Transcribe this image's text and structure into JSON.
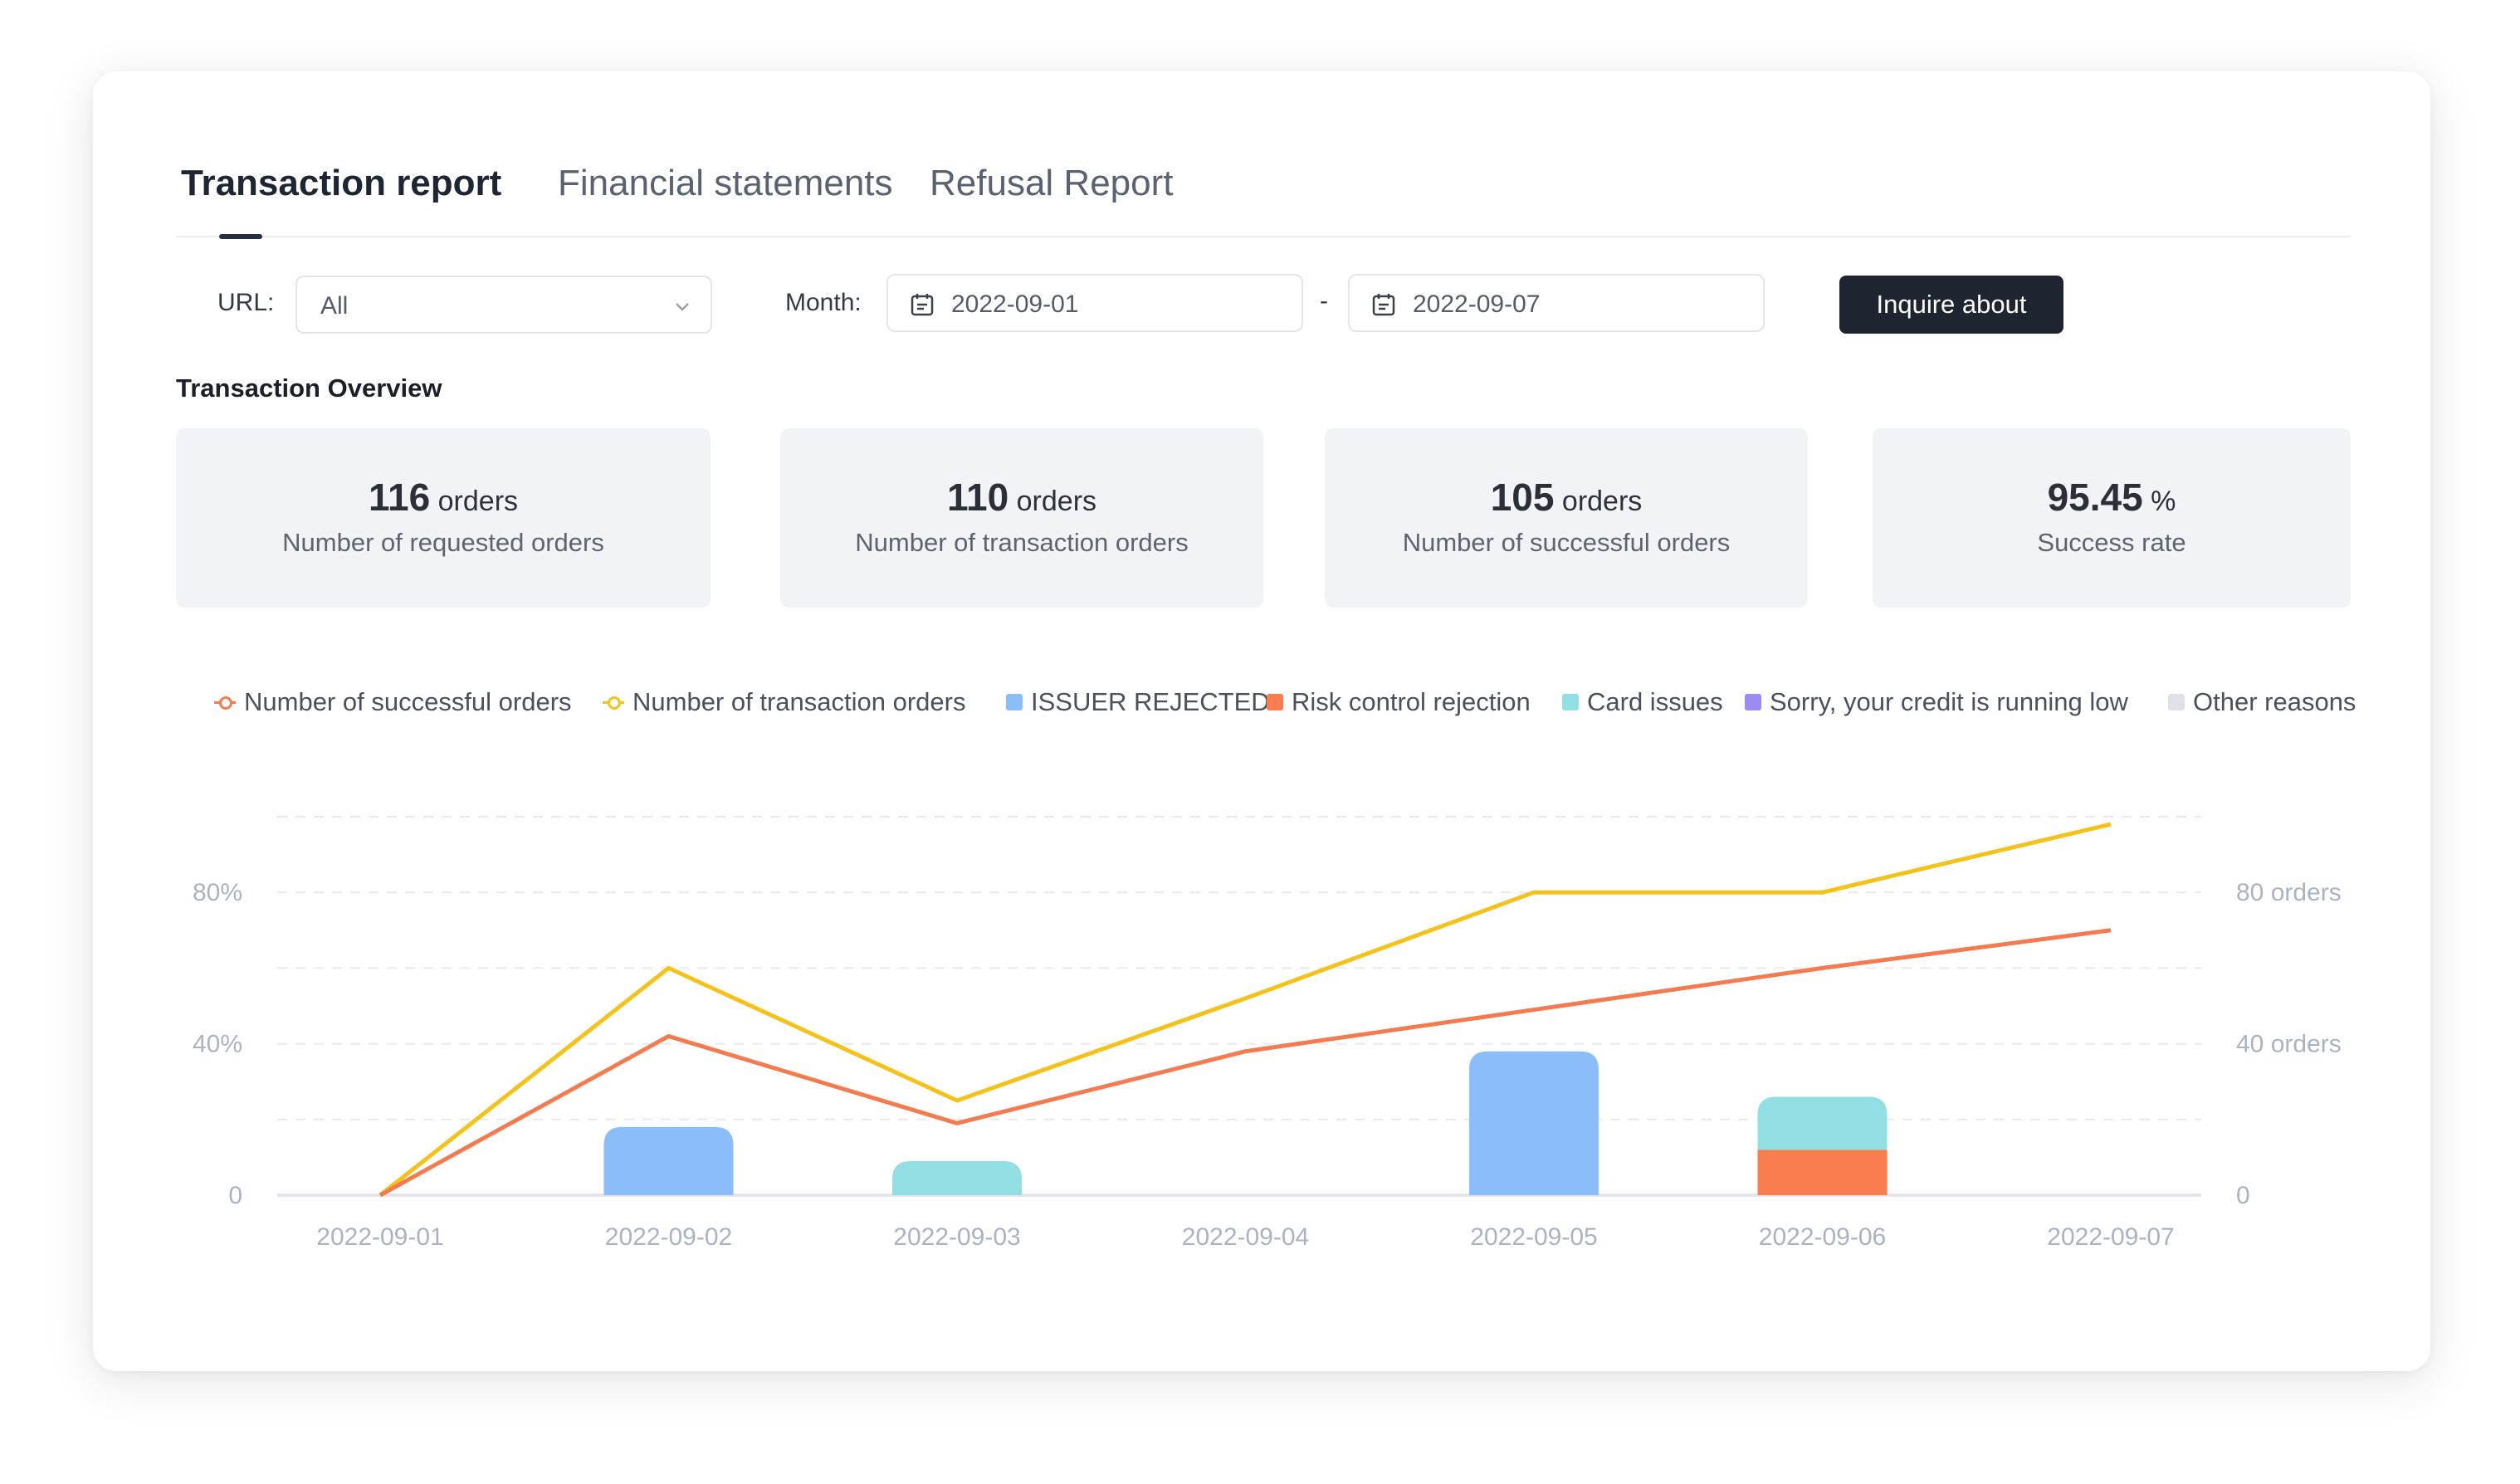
{
  "tabs": [
    {
      "label": "Transaction report",
      "active": true
    },
    {
      "label": "Financial statements",
      "active": false
    },
    {
      "label": "Refusal Report",
      "active": false
    }
  ],
  "filters": {
    "url_label": "URL:",
    "url_value": "All",
    "month_label": "Month:",
    "start_date": "2022-09-01",
    "separator": "-",
    "end_date": "2022-09-07",
    "inquire_label": "Inquire about"
  },
  "overview": {
    "title": "Transaction Overview",
    "stats": [
      {
        "value": "116",
        "unit": "orders",
        "label": "Number of requested orders"
      },
      {
        "value": "110",
        "unit": "orders",
        "label": "Number of transaction orders"
      },
      {
        "value": "105",
        "unit": "orders",
        "label": "Number of successful orders"
      },
      {
        "value": "95.45",
        "unit": "%",
        "label": "Success rate"
      }
    ]
  },
  "colors": {
    "successful": "#f47b4f",
    "transaction": "#f4c21a",
    "issuer_rejected": "#8bbef8",
    "risk_control": "#fa7d4f",
    "card_issues": "#91dfe3",
    "credit_low": "#9b8cf4",
    "other": "#dfe1e6"
  },
  "legend": [
    {
      "label": "Number of successful orders",
      "kind": "line",
      "color": "#f47b4f"
    },
    {
      "label": "Number of transaction orders",
      "kind": "line",
      "color": "#f4c21a"
    },
    {
      "label": "ISSUER REJECTED",
      "kind": "box",
      "color": "#8bbef8"
    },
    {
      "label": "Risk control rejection",
      "kind": "box",
      "color": "#fa7d4f"
    },
    {
      "label": "Card issues",
      "kind": "box",
      "color": "#91dfe3"
    },
    {
      "label": "Sorry, your credit is running low",
      "kind": "box",
      "color": "#9b8cf4"
    },
    {
      "label": "Other reasons",
      "kind": "box",
      "color": "#dfe1e6"
    }
  ],
  "chart_data": {
    "type": "bar",
    "categories": [
      "2022-09-01",
      "2022-09-02",
      "2022-09-03",
      "2022-09-04",
      "2022-09-05",
      "2022-09-06",
      "2022-09-07"
    ],
    "left_axis": {
      "ticks": [
        "0",
        "40%",
        "80%"
      ],
      "range": [
        0,
        100
      ]
    },
    "right_axis": {
      "ticks": [
        "0",
        "40 orders",
        "80 orders"
      ],
      "range": [
        0,
        100
      ]
    },
    "grid": true,
    "legend_position": "top",
    "bar_series": [
      {
        "name": "ISSUER REJECTED",
        "values": [
          0,
          18,
          0,
          0,
          38,
          0,
          0
        ]
      },
      {
        "name": "Risk control rejection",
        "values": [
          0,
          0,
          0,
          0,
          0,
          12,
          0
        ]
      },
      {
        "name": "Card issues",
        "values": [
          0,
          0,
          9,
          0,
          0,
          14,
          0
        ]
      },
      {
        "name": "Sorry, your credit is running low",
        "values": [
          0,
          0,
          0,
          0,
          0,
          0,
          0
        ]
      },
      {
        "name": "Other reasons",
        "values": [
          0,
          0,
          0,
          0,
          0,
          0,
          0
        ]
      }
    ],
    "line_series": [
      {
        "name": "Number of transaction orders",
        "values": [
          0,
          60,
          25,
          52,
          80,
          80,
          98
        ]
      },
      {
        "name": "Number of successful orders",
        "values": [
          0,
          42,
          19,
          38,
          49,
          60,
          70
        ]
      }
    ]
  }
}
